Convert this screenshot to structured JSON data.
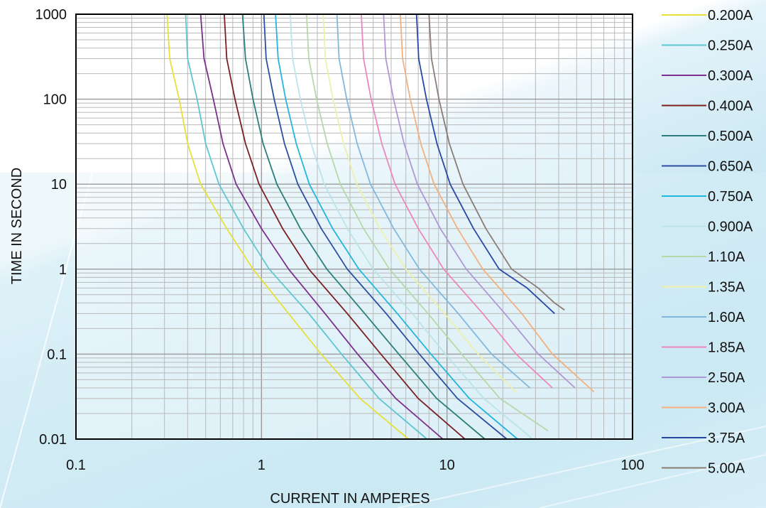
{
  "chart_data": {
    "type": "line",
    "title": "",
    "xlabel": "CURRENT IN AMPERES",
    "ylabel": "TIME IN SECOND",
    "x_scale": "log",
    "y_scale": "log",
    "xlim": [
      0.1,
      100
    ],
    "ylim": [
      0.01,
      1000
    ],
    "x_ticks": [
      "0.1",
      "1",
      "10",
      "100"
    ],
    "y_ticks": [
      "0.01",
      "0.1",
      "1",
      "10",
      "100",
      "1000"
    ],
    "grid": true,
    "legend_position": "right",
    "series": [
      {
        "name": "0.200A",
        "color": "#e8e03a",
        "points": [
          [
            0.31,
            1000
          ],
          [
            0.32,
            300
          ],
          [
            0.36,
            100
          ],
          [
            0.4,
            30
          ],
          [
            0.47,
            10
          ],
          [
            0.65,
            3
          ],
          [
            0.9,
            1
          ],
          [
            1.4,
            0.3
          ],
          [
            2.1,
            0.1
          ],
          [
            3.4,
            0.03
          ],
          [
            6.2,
            0.01
          ]
        ]
      },
      {
        "name": "0.250A",
        "color": "#5ec6d0",
        "points": [
          [
            0.39,
            1000
          ],
          [
            0.4,
            300
          ],
          [
            0.45,
            100
          ],
          [
            0.5,
            30
          ],
          [
            0.59,
            10
          ],
          [
            0.8,
            3
          ],
          [
            1.1,
            1
          ],
          [
            1.8,
            0.3
          ],
          [
            2.7,
            0.1
          ],
          [
            4.3,
            0.03
          ],
          [
            7.8,
            0.01
          ]
        ]
      },
      {
        "name": "0.300A",
        "color": "#7b2f8e",
        "points": [
          [
            0.47,
            1000
          ],
          [
            0.49,
            300
          ],
          [
            0.55,
            100
          ],
          [
            0.62,
            30
          ],
          [
            0.73,
            10
          ],
          [
            1.0,
            3
          ],
          [
            1.4,
            1
          ],
          [
            2.2,
            0.3
          ],
          [
            3.3,
            0.1
          ],
          [
            5.3,
            0.03
          ],
          [
            9.5,
            0.01
          ]
        ]
      },
      {
        "name": "0.400A",
        "color": "#7a1e22",
        "points": [
          [
            0.63,
            1000
          ],
          [
            0.65,
            300
          ],
          [
            0.72,
            100
          ],
          [
            0.82,
            30
          ],
          [
            0.97,
            10
          ],
          [
            1.3,
            3
          ],
          [
            1.8,
            1
          ],
          [
            2.9,
            0.3
          ],
          [
            4.4,
            0.1
          ],
          [
            7.0,
            0.03
          ],
          [
            12.5,
            0.01
          ]
        ]
      },
      {
        "name": "0.500A",
        "color": "#2a7f7a",
        "points": [
          [
            0.79,
            1000
          ],
          [
            0.82,
            300
          ],
          [
            0.9,
            100
          ],
          [
            1.02,
            30
          ],
          [
            1.21,
            10
          ],
          [
            1.62,
            3
          ],
          [
            2.25,
            1
          ],
          [
            3.6,
            0.3
          ],
          [
            5.5,
            0.1
          ],
          [
            8.8,
            0.03
          ],
          [
            16.0,
            0.01
          ]
        ]
      },
      {
        "name": "0.650A",
        "color": "#2b4ea3",
        "points": [
          [
            1.03,
            1000
          ],
          [
            1.06,
            300
          ],
          [
            1.17,
            100
          ],
          [
            1.33,
            30
          ],
          [
            1.57,
            10
          ],
          [
            2.1,
            3
          ],
          [
            2.9,
            1
          ],
          [
            4.7,
            0.3
          ],
          [
            7.1,
            0.1
          ],
          [
            11.4,
            0.03
          ],
          [
            21.0,
            0.01
          ]
        ]
      },
      {
        "name": "0.750A",
        "color": "#22b6de",
        "points": [
          [
            1.19,
            1000
          ],
          [
            1.23,
            300
          ],
          [
            1.35,
            100
          ],
          [
            1.54,
            30
          ],
          [
            1.81,
            10
          ],
          [
            2.42,
            3
          ],
          [
            3.35,
            1
          ],
          [
            5.4,
            0.3
          ],
          [
            8.2,
            0.1
          ],
          [
            13.2,
            0.03
          ],
          [
            24.0,
            0.01
          ]
        ]
      },
      {
        "name": "0.900A",
        "color": "#b9e4ec",
        "points": [
          [
            1.43,
            1000
          ],
          [
            1.47,
            300
          ],
          [
            1.62,
            100
          ],
          [
            1.85,
            30
          ],
          [
            2.18,
            10
          ],
          [
            2.9,
            3
          ],
          [
            4.0,
            1
          ],
          [
            6.5,
            0.3
          ],
          [
            9.8,
            0.1
          ],
          [
            15.8,
            0.03
          ],
          [
            29.0,
            0.01
          ]
        ]
      },
      {
        "name": "1.10A",
        "color": "#b5d9a8",
        "points": [
          [
            1.75,
            1000
          ],
          [
            1.8,
            300
          ],
          [
            1.98,
            100
          ],
          [
            2.26,
            30
          ],
          [
            2.66,
            10
          ],
          [
            3.55,
            3
          ],
          [
            4.9,
            1
          ],
          [
            7.9,
            0.3
          ],
          [
            12.0,
            0.1
          ],
          [
            19.3,
            0.03
          ],
          [
            35.0,
            0.0125
          ]
        ]
      },
      {
        "name": "1.35A",
        "color": "#eff0a8",
        "points": [
          [
            2.15,
            1000
          ],
          [
            2.21,
            300
          ],
          [
            2.43,
            100
          ],
          [
            2.77,
            30
          ],
          [
            3.26,
            10
          ],
          [
            4.35,
            3
          ],
          [
            6.0,
            1
          ],
          [
            9.7,
            0.3
          ],
          [
            14.7,
            0.1
          ],
          [
            23.7,
            0.035
          ]
        ]
      },
      {
        "name": "1.60A",
        "color": "#82b8dd",
        "points": [
          [
            2.55,
            1000
          ],
          [
            2.62,
            300
          ],
          [
            2.88,
            100
          ],
          [
            3.28,
            30
          ],
          [
            3.87,
            10
          ],
          [
            5.16,
            3
          ],
          [
            7.1,
            1
          ],
          [
            11.5,
            0.3
          ],
          [
            17.4,
            0.1
          ],
          [
            28.0,
            0.04
          ]
        ]
      },
      {
        "name": "1.85A",
        "color": "#ec86bd",
        "points": [
          [
            3.45,
            1000
          ],
          [
            3.55,
            300
          ],
          [
            3.9,
            100
          ],
          [
            4.45,
            30
          ],
          [
            5.25,
            10
          ],
          [
            7.0,
            3
          ],
          [
            9.6,
            1
          ],
          [
            15.6,
            0.3
          ],
          [
            23.6,
            0.1
          ],
          [
            37.0,
            0.04
          ]
        ]
      },
      {
        "name": "2.50A",
        "color": "#b196d6",
        "points": [
          [
            4.55,
            1000
          ],
          [
            4.68,
            300
          ],
          [
            5.15,
            100
          ],
          [
            5.87,
            30
          ],
          [
            6.92,
            10
          ],
          [
            9.2,
            3
          ],
          [
            12.7,
            1
          ],
          [
            20.5,
            0.3
          ],
          [
            31.1,
            0.1
          ],
          [
            49.0,
            0.04
          ]
        ]
      },
      {
        "name": "3.00A",
        "color": "#f3b07c",
        "points": [
          [
            5.6,
            1000
          ],
          [
            5.76,
            300
          ],
          [
            6.34,
            100
          ],
          [
            7.22,
            30
          ],
          [
            8.52,
            10
          ],
          [
            11.4,
            3
          ],
          [
            15.6,
            1
          ],
          [
            25.3,
            0.3
          ],
          [
            37.0,
            0.1
          ],
          [
            62.0,
            0.036
          ]
        ]
      },
      {
        "name": "3.75A",
        "color": "#2747a6",
        "points": [
          [
            6.85,
            1000
          ],
          [
            7.04,
            300
          ],
          [
            7.75,
            100
          ],
          [
            8.83,
            30
          ],
          [
            10.4,
            10
          ],
          [
            13.9,
            3
          ],
          [
            19.1,
            1
          ],
          [
            27.0,
            0.6
          ],
          [
            33.0,
            0.4
          ],
          [
            38.0,
            0.3
          ]
        ]
      },
      {
        "name": "5.00A",
        "color": "#8a7c74",
        "points": [
          [
            8.0,
            1000
          ],
          [
            8.25,
            300
          ],
          [
            9.05,
            100
          ],
          [
            10.3,
            30
          ],
          [
            12.2,
            10
          ],
          [
            16.2,
            3
          ],
          [
            22.3,
            1
          ],
          [
            31.0,
            0.6
          ],
          [
            38.0,
            0.4
          ],
          [
            43.0,
            0.33
          ]
        ]
      }
    ]
  }
}
